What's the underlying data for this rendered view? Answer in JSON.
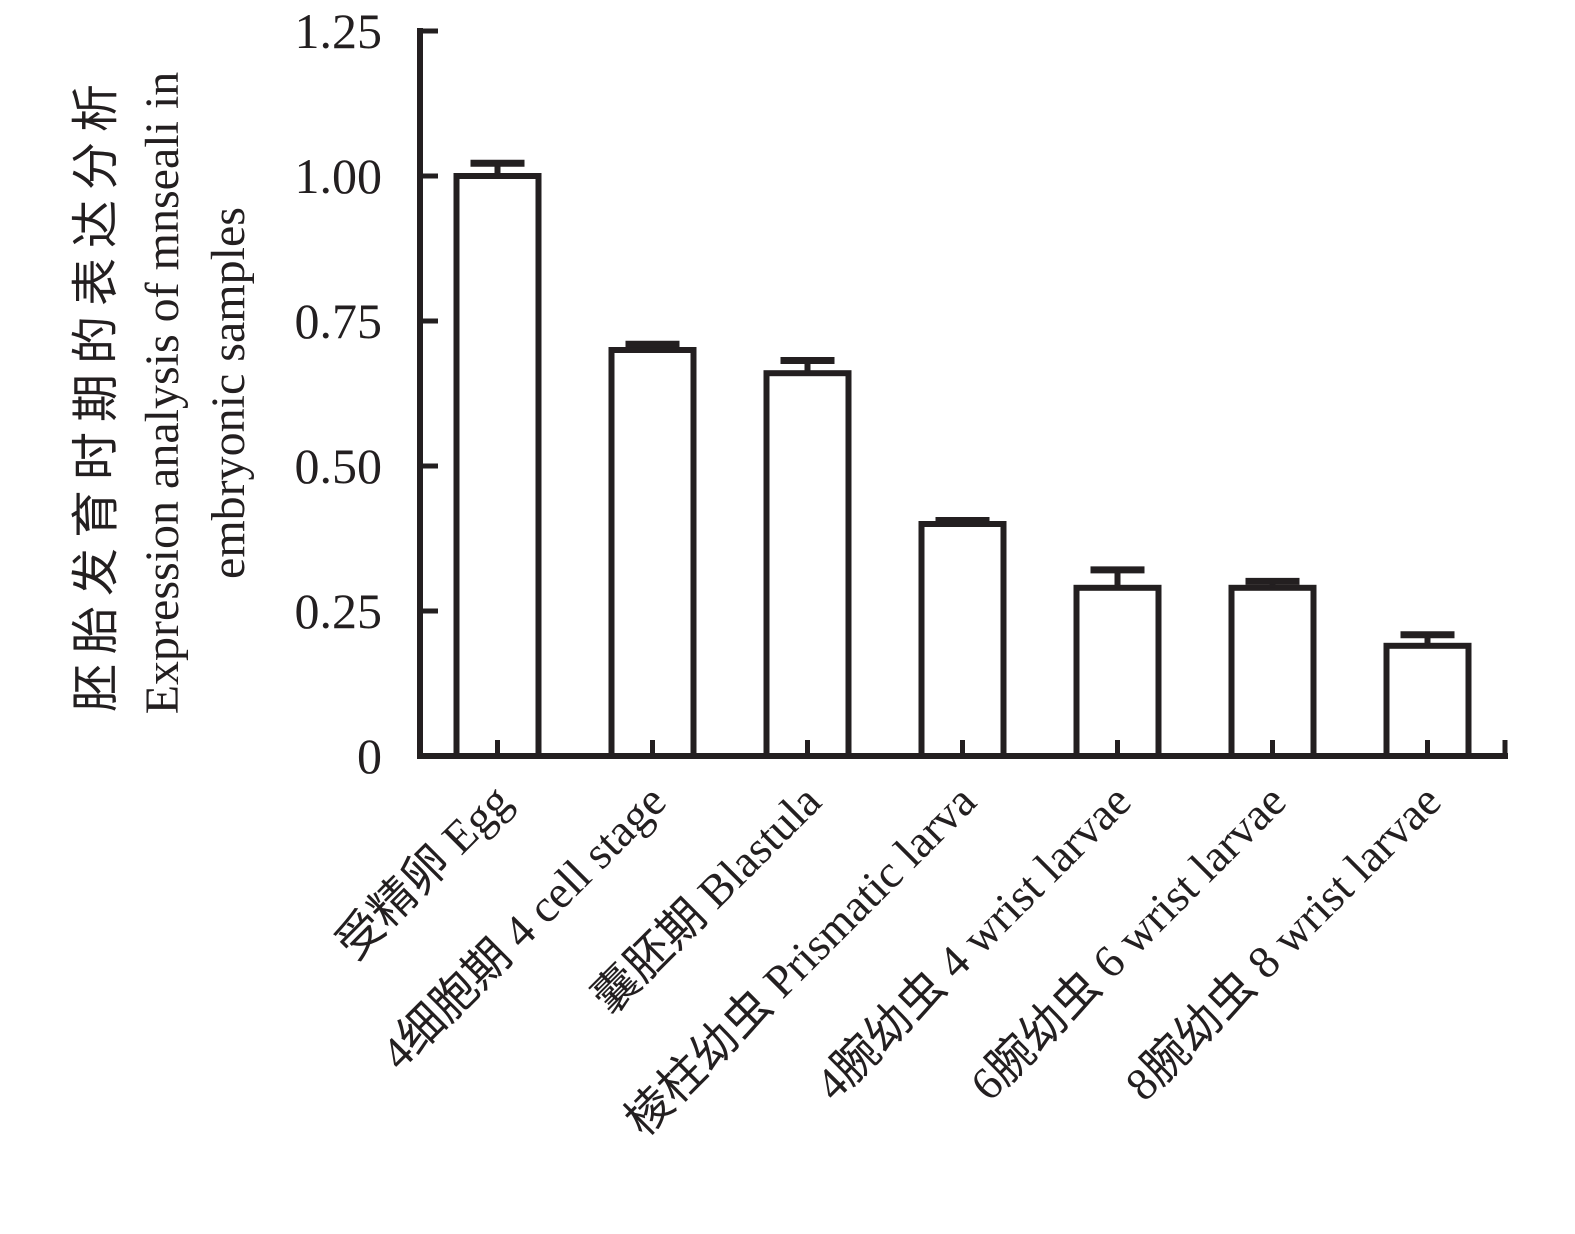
{
  "figure": {
    "background": "#ffffff",
    "ink": "#231f20"
  },
  "chart_data": {
    "type": "bar",
    "title": "",
    "ylabel_zh": "胚胎发育时期的表达分析",
    "ylabel_en_line1": "Expression analysis of mnseali in",
    "ylabel_en_line2": "embryonic samples",
    "xlabel": "",
    "categories": [
      "受精卵 Egg",
      "4细胞期 4 cell stage",
      "囊胚期 Blastula",
      "棱柱幼虫 Prismatic larva",
      "4腕幼虫 4 wrist larvae",
      "6腕幼虫 6 wrist larvae",
      "8腕幼虫 8 wrist larvae"
    ],
    "values": [
      1.0,
      0.7,
      0.66,
      0.4,
      0.29,
      0.29,
      0.19
    ],
    "errors_plus": [
      0.022,
      0.01,
      0.022,
      0.006,
      0.031,
      0.011,
      0.019
    ],
    "ylim": [
      0,
      1.25
    ],
    "yticks": [
      "0",
      "0.25",
      "0.50",
      "0.75",
      "1.00",
      "1.25"
    ],
    "grid": false,
    "legend": "none",
    "bar_fill": "#ffffff",
    "bar_edge": "#231f20",
    "x_tick_direction": "in",
    "y_tick_direction": "in"
  }
}
